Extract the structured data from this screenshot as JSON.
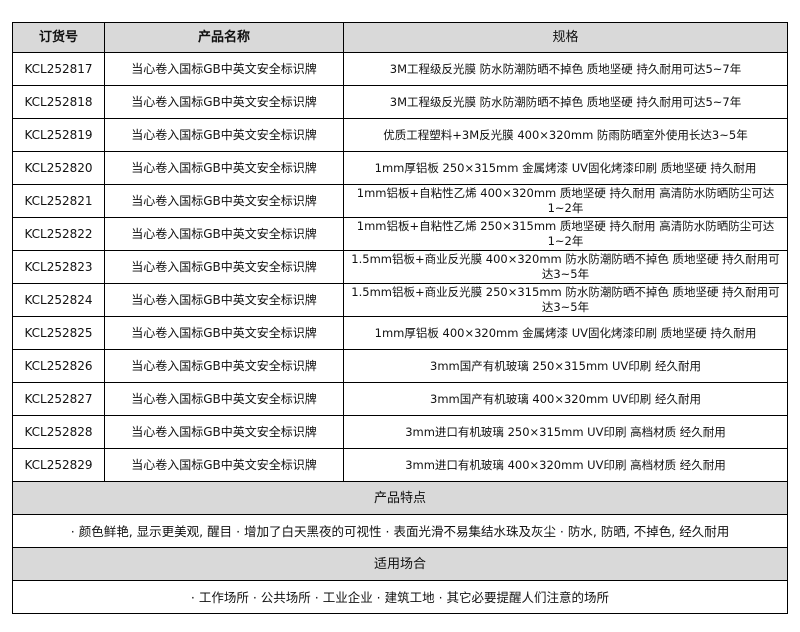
{
  "header": {
    "order_no": "订货号",
    "product_name": "产品名称",
    "spec": "规格"
  },
  "rows": [
    {
      "order_no": "KCL252817",
      "name": "当心卷入国标GB中英文安全标识牌",
      "spec": "3M工程级反光膜 防水防潮防晒不掉色 质地坚硬 持久耐用可达5~7年"
    },
    {
      "order_no": "KCL252818",
      "name": "当心卷入国标GB中英文安全标识牌",
      "spec": "3M工程级反光膜 防水防潮防晒不掉色 质地坚硬 持久耐用可达5~7年"
    },
    {
      "order_no": "KCL252819",
      "name": "当心卷入国标GB中英文安全标识牌",
      "spec": "优质工程塑料+3M反光膜 400×320mm 防雨防晒室外使用长达3~5年"
    },
    {
      "order_no": "KCL252820",
      "name": "当心卷入国标GB中英文安全标识牌",
      "spec": "1mm厚铝板 250×315mm 金属烤漆 UV固化烤漆印刷 质地坚硬 持久耐用"
    },
    {
      "order_no": "KCL252821",
      "name": "当心卷入国标GB中英文安全标识牌",
      "spec": "1mm铝板+自粘性乙烯 400×320mm 质地坚硬 持久耐用 高清防水防晒防尘可达1~2年"
    },
    {
      "order_no": "KCL252822",
      "name": "当心卷入国标GB中英文安全标识牌",
      "spec": "1mm铝板+自粘性乙烯 250×315mm 质地坚硬 持久耐用 高清防水防晒防尘可达1~2年"
    },
    {
      "order_no": "KCL252823",
      "name": "当心卷入国标GB中英文安全标识牌",
      "spec": "1.5mm铝板+商业反光膜 400×320mm 防水防潮防晒不掉色 质地坚硬 持久耐用可达3~5年"
    },
    {
      "order_no": "KCL252824",
      "name": "当心卷入国标GB中英文安全标识牌",
      "spec": "1.5mm铝板+商业反光膜 250×315mm 防水防潮防晒不掉色 质地坚硬 持久耐用可达3~5年"
    },
    {
      "order_no": "KCL252825",
      "name": "当心卷入国标GB中英文安全标识牌",
      "spec": "1mm厚铝板 400×320mm 金属烤漆 UV固化烤漆印刷 质地坚硬 持久耐用"
    },
    {
      "order_no": "KCL252826",
      "name": "当心卷入国标GB中英文安全标识牌",
      "spec": "3mm国产有机玻璃 250×315mm UV印刷 经久耐用"
    },
    {
      "order_no": "KCL252827",
      "name": "当心卷入国标GB中英文安全标识牌",
      "spec": "3mm国产有机玻璃 400×320mm UV印刷 经久耐用"
    },
    {
      "order_no": "KCL252828",
      "name": "当心卷入国标GB中英文安全标识牌",
      "spec": "3mm进口有机玻璃 250×315mm UV印刷 高档材质 经久耐用"
    },
    {
      "order_no": "KCL252829",
      "name": "当心卷入国标GB中英文安全标识牌",
      "spec": "3mm进口有机玻璃 400×320mm UV印刷 高档材质 经久耐用"
    }
  ],
  "features": {
    "title": "产品特点",
    "text": "· 颜色鲜艳, 显示更美观, 醒目 · 增加了白天黑夜的可视性 · 表面光滑不易集结水珠及灰尘 · 防水, 防晒, 不掉色, 经久耐用"
  },
  "applications": {
    "title": "适用场合",
    "text": "· 工作场所 · 公共场所 · 工业企业 · 建筑工地 · 其它必要提醒人们注意的场所"
  },
  "colors": {
    "header_bg": "#d9d9d9",
    "border": "#000000"
  }
}
